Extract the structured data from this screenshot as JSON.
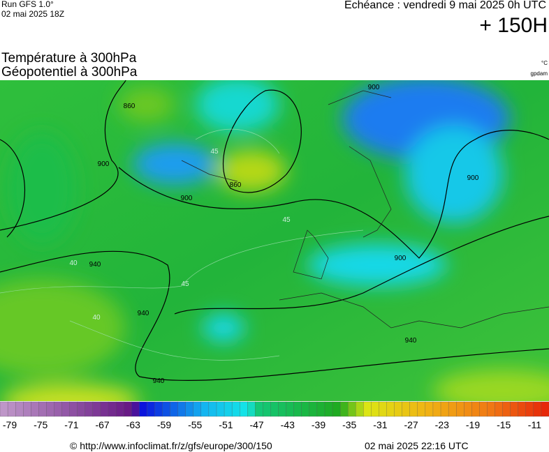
{
  "header": {
    "run": "Run GFS 1.0°",
    "run_date": "02 mai 2025 18Z",
    "echeance": "Echéance : vendredi 9 mai 2025 0h UTC",
    "lead": "+ 150H",
    "title_temperature": "Température à 300hPa",
    "title_geopotential": "Géopotentiel à 300hPa",
    "unit_temperature": "°C",
    "unit_geopotential": "gpdam"
  },
  "map": {
    "contour_labels": [
      "900",
      "860",
      "900",
      "900",
      "860",
      "900",
      "900",
      "940",
      "940",
      "940",
      "940",
      "45",
      "45",
      "45",
      "40",
      "40"
    ]
  },
  "colorbar": {
    "labels": [
      -79,
      -75,
      -71,
      -67,
      -63,
      -59,
      -55,
      -51,
      -47,
      -43,
      -39,
      -35,
      -31,
      -27,
      -23,
      -19,
      -15,
      -11
    ]
  },
  "footer": {
    "url": "© http://www.infoclimat.fr/z/gfs/europe/300/150",
    "timestamp": "02 mai 2025 22:16 UTC"
  }
}
